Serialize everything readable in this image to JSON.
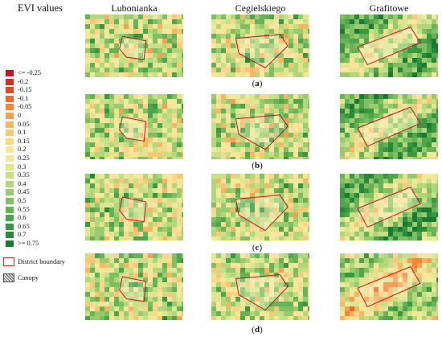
{
  "legend": {
    "title": "EVI values",
    "items": [
      {
        "label": "<= -0.25",
        "color": "#c0141e"
      },
      {
        "label": "-0.2",
        "color": "#d4301e"
      },
      {
        "label": "-0.15",
        "color": "#e24a22"
      },
      {
        "label": "-0.1",
        "color": "#ec6a2d"
      },
      {
        "label": "-0.05",
        "color": "#f3863b"
      },
      {
        "label": "0",
        "color": "#f7a150"
      },
      {
        "label": "0.05",
        "color": "#f9b562"
      },
      {
        "label": "0.1",
        "color": "#fbc776"
      },
      {
        "label": "0.15",
        "color": "#fcd68a"
      },
      {
        "label": "0.2",
        "color": "#fde39d"
      },
      {
        "label": "0.25",
        "color": "#f1e89b"
      },
      {
        "label": "0.3",
        "color": "#dfe590"
      },
      {
        "label": "0.35",
        "color": "#c9df85"
      },
      {
        "label": "0.4",
        "color": "#b2d67a"
      },
      {
        "label": "0.45",
        "color": "#99cb6e"
      },
      {
        "label": "0.5",
        "color": "#7fbf62"
      },
      {
        "label": "0.55",
        "color": "#66b257"
      },
      {
        "label": "0.6",
        "color": "#4fa44c"
      },
      {
        "label": "0.65",
        "color": "#3b9642"
      },
      {
        "label": "0.7",
        "color": "#2a8839"
      },
      {
        "label": ">= 0.75",
        "color": "#1a7a31"
      }
    ],
    "boundary_label": "District boundary",
    "canopy_label": "Canopy"
  },
  "columns": [
    "Lubonianka",
    "Cegielskiego",
    "Grafitowe"
  ],
  "rows": [
    {
      "open": "(",
      "letter": "a",
      "close": ")"
    },
    {
      "open": "(",
      "letter": "b",
      "close": ")"
    },
    {
      "open": "(",
      "letter": "c",
      "close": ")"
    },
    {
      "open": "(",
      "letter": "d",
      "close": ")"
    }
  ]
}
